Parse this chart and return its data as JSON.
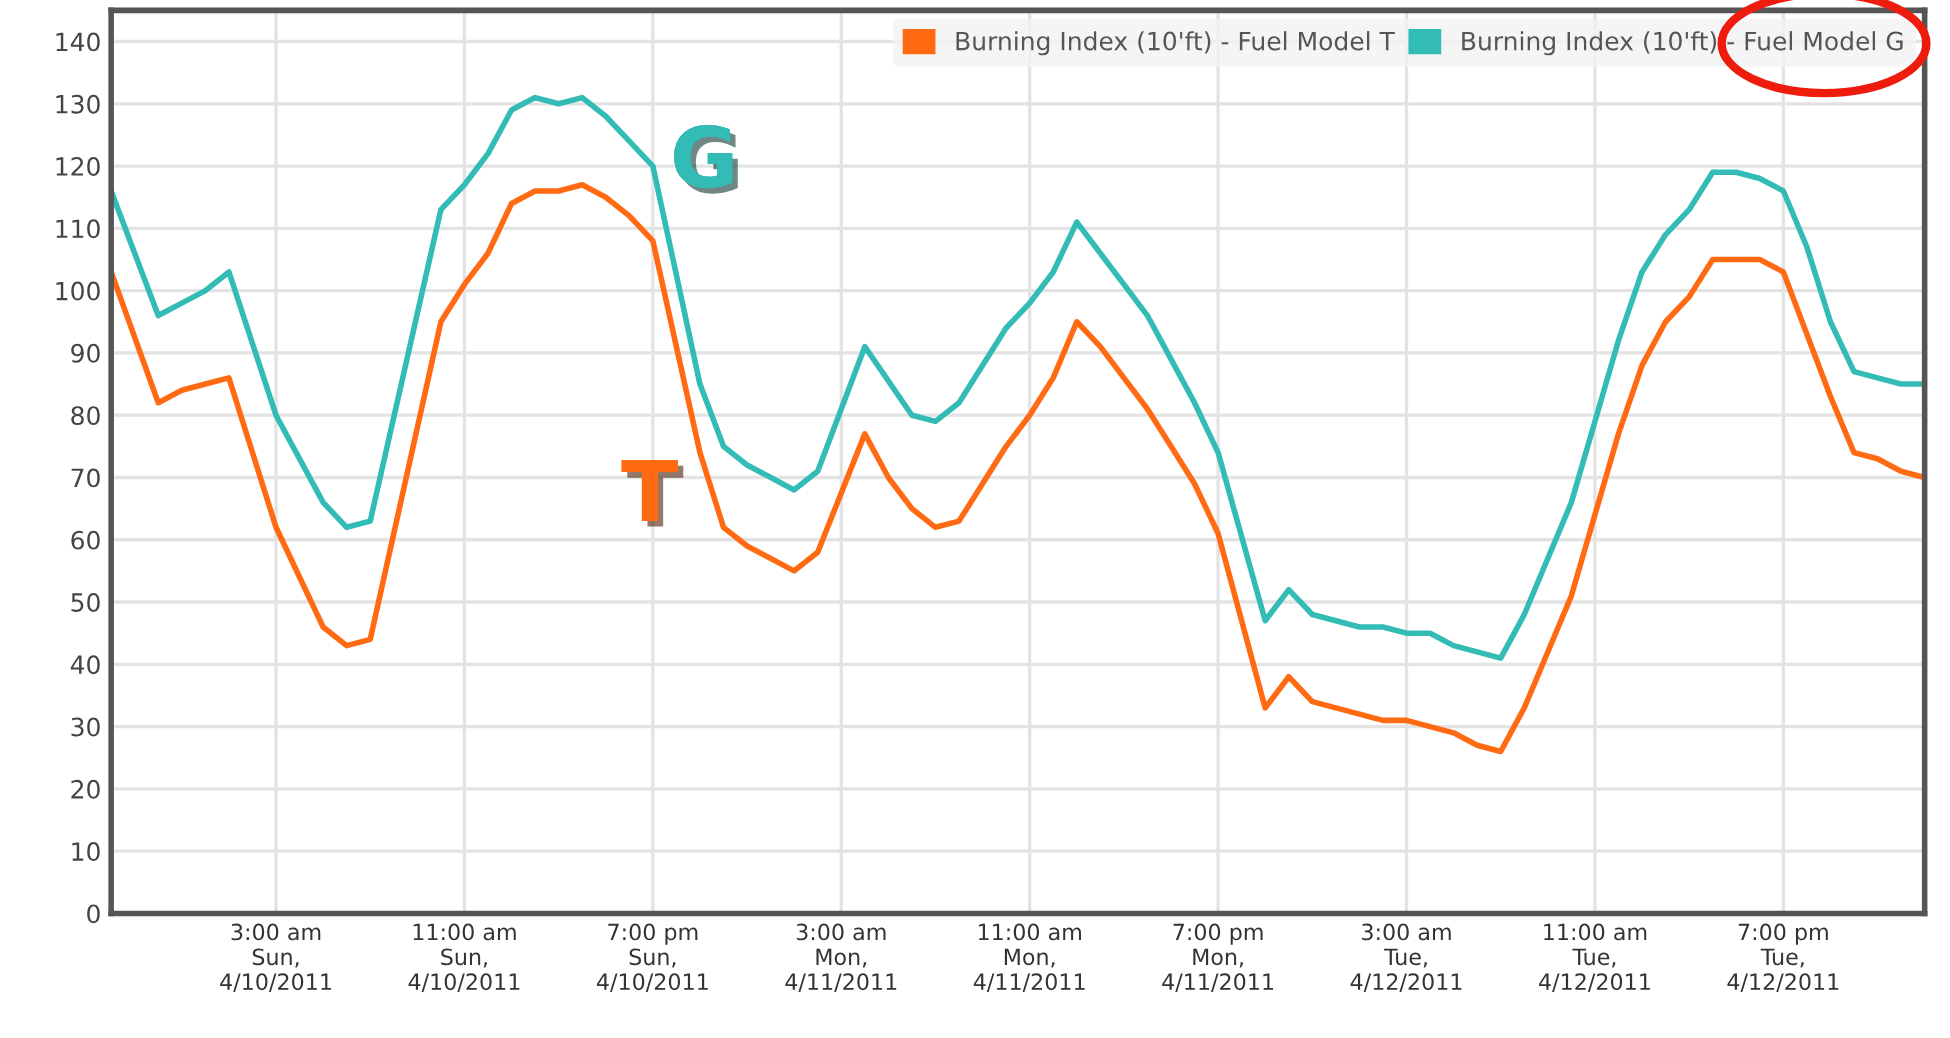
{
  "chart_data": {
    "type": "line",
    "xlim": [
      "2011-04-09T20:00",
      "2011-04-13T01:00"
    ],
    "xticks": [
      {
        "value": "2011-04-10T03:00",
        "label": "3:00 am\nSun,\n4/10/2011"
      },
      {
        "value": "2011-04-10T11:00",
        "label": "11:00 am\nSun,\n4/10/2011"
      },
      {
        "value": "2011-04-10T19:00",
        "label": "7:00 pm\nSun,\n4/10/2011"
      },
      {
        "value": "2011-04-11T03:00",
        "label": "3:00 am\nMon,\n4/11/2011"
      },
      {
        "value": "2011-04-11T11:00",
        "label": "11:00 am\nMon,\n4/11/2011"
      },
      {
        "value": "2011-04-11T19:00",
        "label": "7:00 pm\nMon,\n4/11/2011"
      },
      {
        "value": "2011-04-12T03:00",
        "label": "3:00 am\nTue,\n4/12/2011"
      },
      {
        "value": "2011-04-12T11:00",
        "label": "11:00 am\nTue,\n4/12/2011"
      },
      {
        "value": "2011-04-12T19:00",
        "label": "7:00 pm\nTue,\n4/12/2011"
      }
    ],
    "ylim": [
      0,
      145
    ],
    "yticks": [
      0,
      10,
      20,
      30,
      40,
      50,
      60,
      70,
      80,
      90,
      100,
      110,
      120,
      130,
      140
    ],
    "grid": true,
    "legend": "top right",
    "marker": "none",
    "line_style": "solid",
    "annotations": [
      "T",
      "G"
    ],
    "series": [
      {
        "name": "Burning Index (10'ft) - Fuel Model T",
        "color": "#ff6a13",
        "x": [
          "2011-04-09T20:00",
          "2011-04-09T22:00",
          "2011-04-09T23:00",
          "2011-04-10T00:00",
          "2011-04-10T01:00",
          "2011-04-10T03:00",
          "2011-04-10T05:00",
          "2011-04-10T06:00",
          "2011-04-10T07:00",
          "2011-04-10T10:00",
          "2011-04-10T11:00",
          "2011-04-10T12:00",
          "2011-04-10T13:00",
          "2011-04-10T14:00",
          "2011-04-10T15:00",
          "2011-04-10T16:00",
          "2011-04-10T17:00",
          "2011-04-10T18:00",
          "2011-04-10T19:00",
          "2011-04-10T21:00",
          "2011-04-10T22:00",
          "2011-04-10T23:00",
          "2011-04-11T01:00",
          "2011-04-11T02:00",
          "2011-04-11T04:00",
          "2011-04-11T05:00",
          "2011-04-11T06:00",
          "2011-04-11T07:00",
          "2011-04-11T08:00",
          "2011-04-11T10:00",
          "2011-04-11T11:00",
          "2011-04-11T12:00",
          "2011-04-11T13:00",
          "2011-04-11T14:00",
          "2011-04-11T15:00",
          "2011-04-11T16:00",
          "2011-04-11T17:00",
          "2011-04-11T18:00",
          "2011-04-11T19:00",
          "2011-04-11T21:00",
          "2011-04-11T22:00",
          "2011-04-11T23:00",
          "2011-04-12T00:00",
          "2011-04-12T01:00",
          "2011-04-12T02:00",
          "2011-04-12T03:00",
          "2011-04-12T04:00",
          "2011-04-12T05:00",
          "2011-04-12T06:00",
          "2011-04-12T07:00",
          "2011-04-12T08:00",
          "2011-04-12T10:00",
          "2011-04-12T11:00",
          "2011-04-12T12:00",
          "2011-04-12T13:00",
          "2011-04-12T14:00",
          "2011-04-12T15:00",
          "2011-04-12T16:00",
          "2011-04-12T17:00",
          "2011-04-12T18:00",
          "2011-04-12T19:00",
          "2011-04-12T20:00",
          "2011-04-12T21:00",
          "2011-04-12T22:00",
          "2011-04-12T23:00",
          "2011-04-13T00:00",
          "2011-04-13T01:00"
        ],
        "values": [
          103,
          82,
          84,
          85,
          86,
          62,
          46,
          43,
          44,
          95,
          101,
          106,
          114,
          116,
          116,
          117,
          115,
          112,
          108,
          74,
          62,
          59,
          55,
          58,
          77,
          70,
          65,
          62,
          63,
          75,
          80,
          86,
          95,
          91,
          86,
          81,
          75,
          69,
          61,
          33,
          38,
          34,
          33,
          32,
          31,
          31,
          30,
          29,
          27,
          26,
          33,
          51,
          64,
          77,
          88,
          95,
          99,
          105,
          105,
          105,
          103,
          93,
          83,
          74,
          73,
          71,
          70
        ]
      },
      {
        "name": "Burning Index (10'ft) - Fuel Model G",
        "color": "#33bbb5",
        "x": [
          "2011-04-09T20:00",
          "2011-04-09T22:00",
          "2011-04-09T23:00",
          "2011-04-10T00:00",
          "2011-04-10T01:00",
          "2011-04-10T03:00",
          "2011-04-10T05:00",
          "2011-04-10T06:00",
          "2011-04-10T07:00",
          "2011-04-10T10:00",
          "2011-04-10T11:00",
          "2011-04-10T12:00",
          "2011-04-10T13:00",
          "2011-04-10T14:00",
          "2011-04-10T15:00",
          "2011-04-10T16:00",
          "2011-04-10T17:00",
          "2011-04-10T18:00",
          "2011-04-10T19:00",
          "2011-04-10T21:00",
          "2011-04-10T22:00",
          "2011-04-10T23:00",
          "2011-04-11T01:00",
          "2011-04-11T02:00",
          "2011-04-11T04:00",
          "2011-04-11T06:00",
          "2011-04-11T07:00",
          "2011-04-11T08:00",
          "2011-04-11T10:00",
          "2011-04-11T11:00",
          "2011-04-11T12:00",
          "2011-04-11T13:00",
          "2011-04-11T14:00",
          "2011-04-11T15:00",
          "2011-04-11T16:00",
          "2011-04-11T17:00",
          "2011-04-11T18:00",
          "2011-04-11T19:00",
          "2011-04-11T21:00",
          "2011-04-11T22:00",
          "2011-04-11T23:00",
          "2011-04-12T01:00",
          "2011-04-12T02:00",
          "2011-04-12T03:00",
          "2011-04-12T04:00",
          "2011-04-12T05:00",
          "2011-04-12T06:00",
          "2011-04-12T07:00",
          "2011-04-12T08:00",
          "2011-04-12T10:00",
          "2011-04-12T11:00",
          "2011-04-12T12:00",
          "2011-04-12T13:00",
          "2011-04-12T14:00",
          "2011-04-12T15:00",
          "2011-04-12T16:00",
          "2011-04-12T17:00",
          "2011-04-12T18:00",
          "2011-04-12T19:00",
          "2011-04-12T20:00",
          "2011-04-12T21:00",
          "2011-04-12T22:00",
          "2011-04-12T23:00",
          "2011-04-13T00:00",
          "2011-04-13T01:00"
        ],
        "values": [
          116,
          96,
          98,
          100,
          103,
          80,
          66,
          62,
          63,
          113,
          117,
          122,
          129,
          131,
          130,
          131,
          128,
          124,
          120,
          85,
          75,
          72,
          68,
          71,
          91,
          80,
          79,
          82,
          94,
          98,
          103,
          111,
          106,
          101,
          96,
          89,
          82,
          74,
          47,
          52,
          48,
          46,
          46,
          45,
          45,
          43,
          42,
          41,
          48,
          66,
          79,
          92,
          103,
          109,
          113,
          119,
          119,
          118,
          116,
          107,
          95,
          87,
          86,
          85,
          85
        ]
      }
    ]
  }
}
